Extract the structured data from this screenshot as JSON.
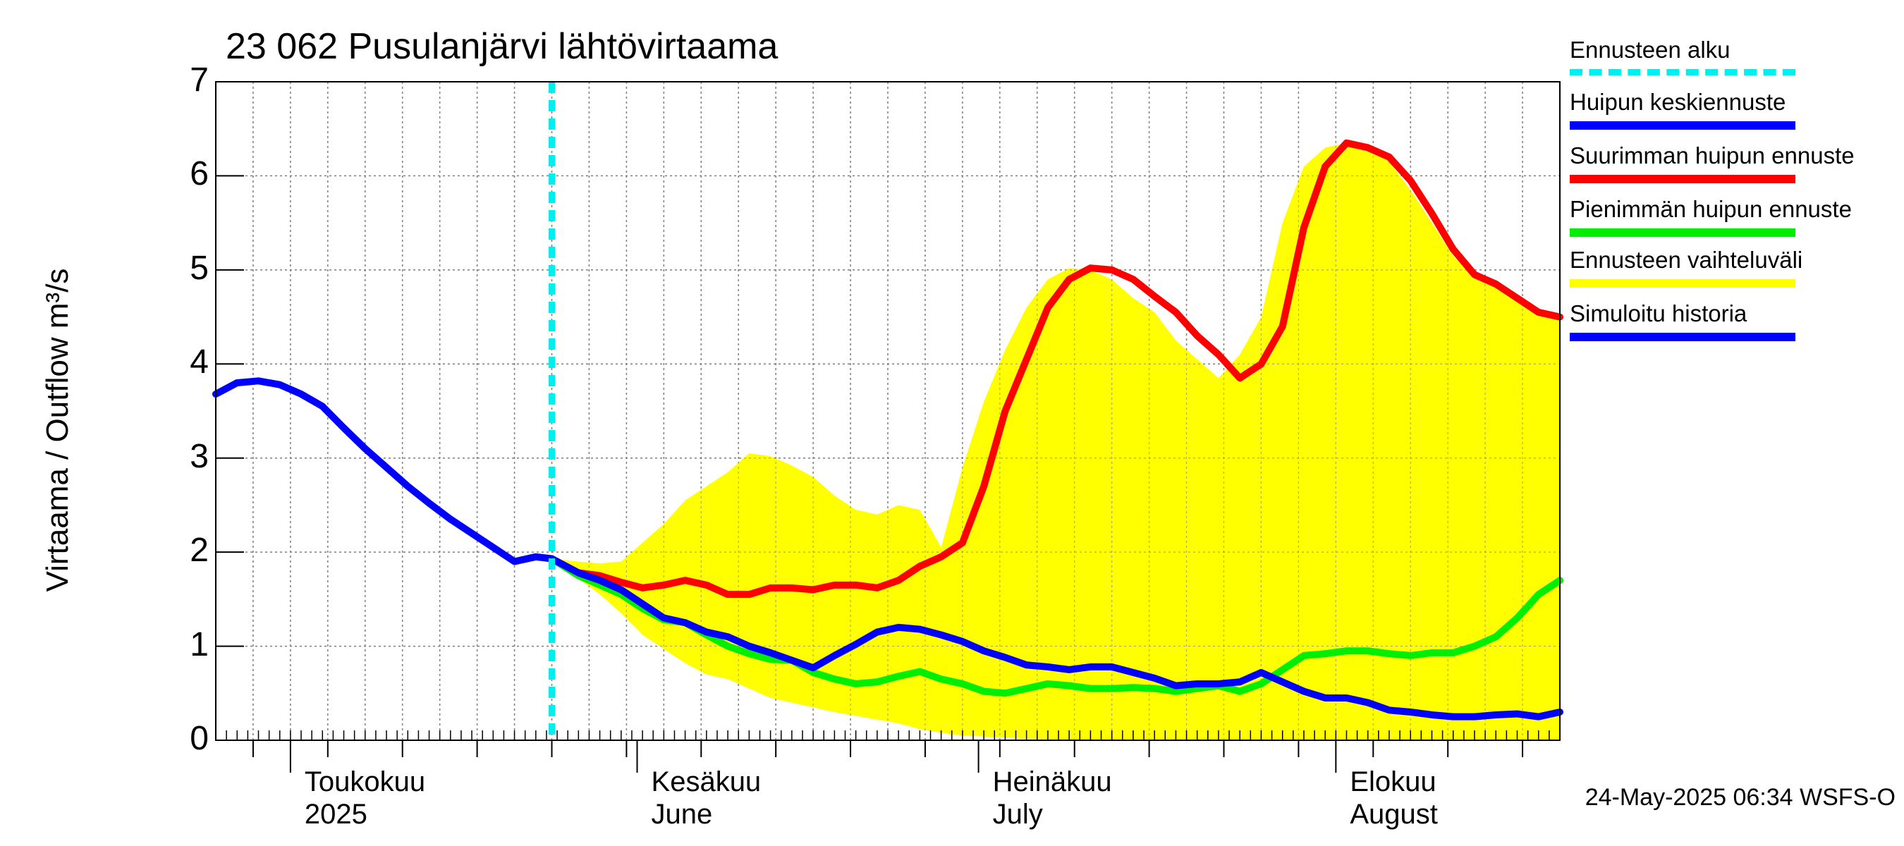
{
  "chart_data": {
    "type": "line",
    "title": "23 062 Pusulanjärvi lähtövirtaama",
    "ylabel": "Virtaama / Outflow    m³/s",
    "ylim": [
      0,
      7
    ],
    "yticks": [
      "0",
      "1",
      "2",
      "3",
      "4",
      "5",
      "6",
      "7"
    ],
    "x_range_days": [
      0,
      126
    ],
    "forecast_start_day": 31.5,
    "months": [
      {
        "fi": "Toukokuu",
        "en": "2025",
        "day": 7
      },
      {
        "fi": "Kesäkuu",
        "en": "June",
        "day": 39.5
      },
      {
        "fi": "Heinäkuu",
        "en": "July",
        "day": 71.5
      },
      {
        "fi": "Elokuu",
        "en": "August",
        "day": 105
      }
    ],
    "month_boundaries": [
      7,
      39.5,
      71.5,
      105
    ],
    "series": [
      {
        "name": "Ennusteen vaihteluväli",
        "color": "#ffff00",
        "upper": [
          [
            31.5,
            1.93
          ],
          [
            34,
            1.9
          ],
          [
            36,
            1.88
          ],
          [
            38,
            1.9
          ],
          [
            40,
            2.1
          ],
          [
            42,
            2.3
          ],
          [
            44,
            2.55
          ],
          [
            46,
            2.7
          ],
          [
            48,
            2.85
          ],
          [
            50,
            3.05
          ],
          [
            52,
            3.02
          ],
          [
            54,
            2.92
          ],
          [
            56,
            2.8
          ],
          [
            58,
            2.6
          ],
          [
            60,
            2.45
          ],
          [
            62,
            2.4
          ],
          [
            64,
            2.5
          ],
          [
            66,
            2.45
          ],
          [
            68,
            2.05
          ],
          [
            70,
            2.9
          ],
          [
            72,
            3.6
          ],
          [
            74,
            4.15
          ],
          [
            76,
            4.6
          ],
          [
            78,
            4.9
          ],
          [
            80,
            5.02
          ],
          [
            82,
            5.0
          ],
          [
            84,
            4.9
          ],
          [
            86,
            4.7
          ],
          [
            88,
            4.55
          ],
          [
            90,
            4.25
          ],
          [
            92,
            4.05
          ],
          [
            94,
            3.85
          ],
          [
            96,
            4.1
          ],
          [
            98,
            4.5
          ],
          [
            100,
            5.5
          ],
          [
            102,
            6.1
          ],
          [
            104,
            6.3
          ],
          [
            106,
            6.35
          ],
          [
            108,
            6.3
          ],
          [
            110,
            6.15
          ],
          [
            112,
            5.85
          ],
          [
            114,
            5.5
          ],
          [
            116,
            5.15
          ],
          [
            118,
            4.92
          ],
          [
            120,
            4.85
          ],
          [
            122,
            4.7
          ],
          [
            124,
            4.55
          ],
          [
            126,
            4.5
          ]
        ],
        "lower": [
          [
            31.5,
            1.93
          ],
          [
            34,
            1.72
          ],
          [
            36,
            1.55
          ],
          [
            38,
            1.35
          ],
          [
            40,
            1.12
          ],
          [
            42,
            0.97
          ],
          [
            44,
            0.82
          ],
          [
            46,
            0.7
          ],
          [
            48,
            0.65
          ],
          [
            50,
            0.55
          ],
          [
            52,
            0.45
          ],
          [
            54,
            0.4
          ],
          [
            56,
            0.35
          ],
          [
            58,
            0.3
          ],
          [
            60,
            0.26
          ],
          [
            62,
            0.22
          ],
          [
            64,
            0.18
          ],
          [
            66,
            0.12
          ],
          [
            68,
            0.08
          ],
          [
            70,
            0.05
          ],
          [
            72,
            0.04
          ],
          [
            74,
            0.03
          ],
          [
            76,
            0.02
          ],
          [
            78,
            0.01
          ],
          [
            80,
            0.0
          ],
          [
            126,
            0.0
          ]
        ]
      },
      {
        "name": "Suurimman huipun ennuste",
        "color": "#ff0000",
        "points": [
          [
            31.5,
            1.93
          ],
          [
            34,
            1.78
          ],
          [
            36,
            1.75
          ],
          [
            38,
            1.68
          ],
          [
            40,
            1.62
          ],
          [
            42,
            1.65
          ],
          [
            44,
            1.7
          ],
          [
            46,
            1.65
          ],
          [
            48,
            1.55
          ],
          [
            50,
            1.55
          ],
          [
            52,
            1.62
          ],
          [
            54,
            1.62
          ],
          [
            56,
            1.6
          ],
          [
            58,
            1.65
          ],
          [
            60,
            1.65
          ],
          [
            62,
            1.62
          ],
          [
            64,
            1.7
          ],
          [
            66,
            1.85
          ],
          [
            68,
            1.95
          ],
          [
            70,
            2.1
          ],
          [
            72,
            2.7
          ],
          [
            74,
            3.5
          ],
          [
            76,
            4.05
          ],
          [
            78,
            4.6
          ],
          [
            80,
            4.9
          ],
          [
            82,
            5.02
          ],
          [
            84,
            5.0
          ],
          [
            86,
            4.9
          ],
          [
            88,
            4.72
          ],
          [
            90,
            4.55
          ],
          [
            92,
            4.3
          ],
          [
            94,
            4.1
          ],
          [
            96,
            3.85
          ],
          [
            98,
            4.0
          ],
          [
            100,
            4.4
          ],
          [
            102,
            5.45
          ],
          [
            104,
            6.1
          ],
          [
            106,
            6.35
          ],
          [
            108,
            6.3
          ],
          [
            110,
            6.2
          ],
          [
            112,
            5.95
          ],
          [
            114,
            5.6
          ],
          [
            116,
            5.22
          ],
          [
            118,
            4.95
          ],
          [
            120,
            4.85
          ],
          [
            122,
            4.7
          ],
          [
            124,
            4.55
          ],
          [
            126,
            4.5
          ]
        ]
      },
      {
        "name": "Pienimmän huipun ennuste",
        "color": "#00ee00",
        "points": [
          [
            31.5,
            1.93
          ],
          [
            34,
            1.75
          ],
          [
            36,
            1.65
          ],
          [
            38,
            1.55
          ],
          [
            40,
            1.4
          ],
          [
            42,
            1.28
          ],
          [
            44,
            1.25
          ],
          [
            46,
            1.12
          ],
          [
            48,
            1.0
          ],
          [
            50,
            0.92
          ],
          [
            52,
            0.86
          ],
          [
            54,
            0.85
          ],
          [
            56,
            0.72
          ],
          [
            58,
            0.65
          ],
          [
            60,
            0.6
          ],
          [
            62,
            0.62
          ],
          [
            64,
            0.68
          ],
          [
            66,
            0.73
          ],
          [
            68,
            0.65
          ],
          [
            70,
            0.6
          ],
          [
            72,
            0.52
          ],
          [
            74,
            0.5
          ],
          [
            76,
            0.55
          ],
          [
            78,
            0.6
          ],
          [
            80,
            0.58
          ],
          [
            82,
            0.55
          ],
          [
            84,
            0.55
          ],
          [
            86,
            0.56
          ],
          [
            88,
            0.55
          ],
          [
            90,
            0.52
          ],
          [
            92,
            0.55
          ],
          [
            94,
            0.58
          ],
          [
            96,
            0.52
          ],
          [
            98,
            0.6
          ],
          [
            100,
            0.75
          ],
          [
            102,
            0.9
          ],
          [
            104,
            0.92
          ],
          [
            106,
            0.95
          ],
          [
            108,
            0.95
          ],
          [
            110,
            0.92
          ],
          [
            112,
            0.9
          ],
          [
            114,
            0.93
          ],
          [
            116,
            0.93
          ],
          [
            118,
            1.0
          ],
          [
            120,
            1.1
          ],
          [
            122,
            1.3
          ],
          [
            124,
            1.55
          ],
          [
            126,
            1.7
          ]
        ]
      },
      {
        "name": "Huipun keskiennuste",
        "color": "#0000ff",
        "points": [
          [
            31.5,
            1.93
          ],
          [
            34,
            1.78
          ],
          [
            36,
            1.7
          ],
          [
            38,
            1.6
          ],
          [
            40,
            1.45
          ],
          [
            42,
            1.3
          ],
          [
            44,
            1.25
          ],
          [
            46,
            1.15
          ],
          [
            48,
            1.1
          ],
          [
            50,
            1.0
          ],
          [
            52,
            0.93
          ],
          [
            54,
            0.85
          ],
          [
            56,
            0.77
          ],
          [
            58,
            0.9
          ],
          [
            60,
            1.02
          ],
          [
            62,
            1.15
          ],
          [
            64,
            1.2
          ],
          [
            66,
            1.18
          ],
          [
            68,
            1.12
          ],
          [
            70,
            1.05
          ],
          [
            72,
            0.95
          ],
          [
            74,
            0.88
          ],
          [
            76,
            0.8
          ],
          [
            78,
            0.78
          ],
          [
            80,
            0.75
          ],
          [
            82,
            0.78
          ],
          [
            84,
            0.78
          ],
          [
            86,
            0.72
          ],
          [
            88,
            0.66
          ],
          [
            90,
            0.58
          ],
          [
            92,
            0.6
          ],
          [
            94,
            0.6
          ],
          [
            96,
            0.62
          ],
          [
            98,
            0.72
          ],
          [
            100,
            0.62
          ],
          [
            102,
            0.52
          ],
          [
            104,
            0.45
          ],
          [
            106,
            0.45
          ],
          [
            108,
            0.4
          ],
          [
            110,
            0.32
          ],
          [
            112,
            0.3
          ],
          [
            114,
            0.27
          ],
          [
            116,
            0.25
          ],
          [
            118,
            0.25
          ],
          [
            120,
            0.27
          ],
          [
            122,
            0.28
          ],
          [
            124,
            0.25
          ],
          [
            126,
            0.3
          ]
        ]
      },
      {
        "name": "Simuloitu historia",
        "color": "#0000ff",
        "points": [
          [
            0,
            3.68
          ],
          [
            2,
            3.8
          ],
          [
            4,
            3.82
          ],
          [
            6,
            3.78
          ],
          [
            8,
            3.68
          ],
          [
            10,
            3.55
          ],
          [
            12,
            3.32
          ],
          [
            14,
            3.1
          ],
          [
            16,
            2.9
          ],
          [
            18,
            2.7
          ],
          [
            20,
            2.52
          ],
          [
            22,
            2.35
          ],
          [
            24,
            2.2
          ],
          [
            26,
            2.05
          ],
          [
            28,
            1.9
          ],
          [
            30,
            1.95
          ],
          [
            31.5,
            1.93
          ]
        ]
      }
    ]
  },
  "legend": [
    {
      "label": "Ennusteen alku",
      "color": "#00eeee",
      "style": "dashed"
    },
    {
      "label": "Huipun keskiennuste",
      "color": "#0000ff",
      "style": "solid"
    },
    {
      "label": "Suurimman huipun ennuste",
      "color": "#ff0000",
      "style": "solid"
    },
    {
      "label": "Pienimmän huipun ennuste",
      "color": "#00ee00",
      "style": "solid"
    },
    {
      "label": "Ennusteen vaihteluväli",
      "color": "#ffff00",
      "style": "solid"
    },
    {
      "label": "Simuloitu historia",
      "color": "#0000ff",
      "style": "solid"
    }
  ],
  "footer": "24-May-2025 06:34 WSFS-O"
}
